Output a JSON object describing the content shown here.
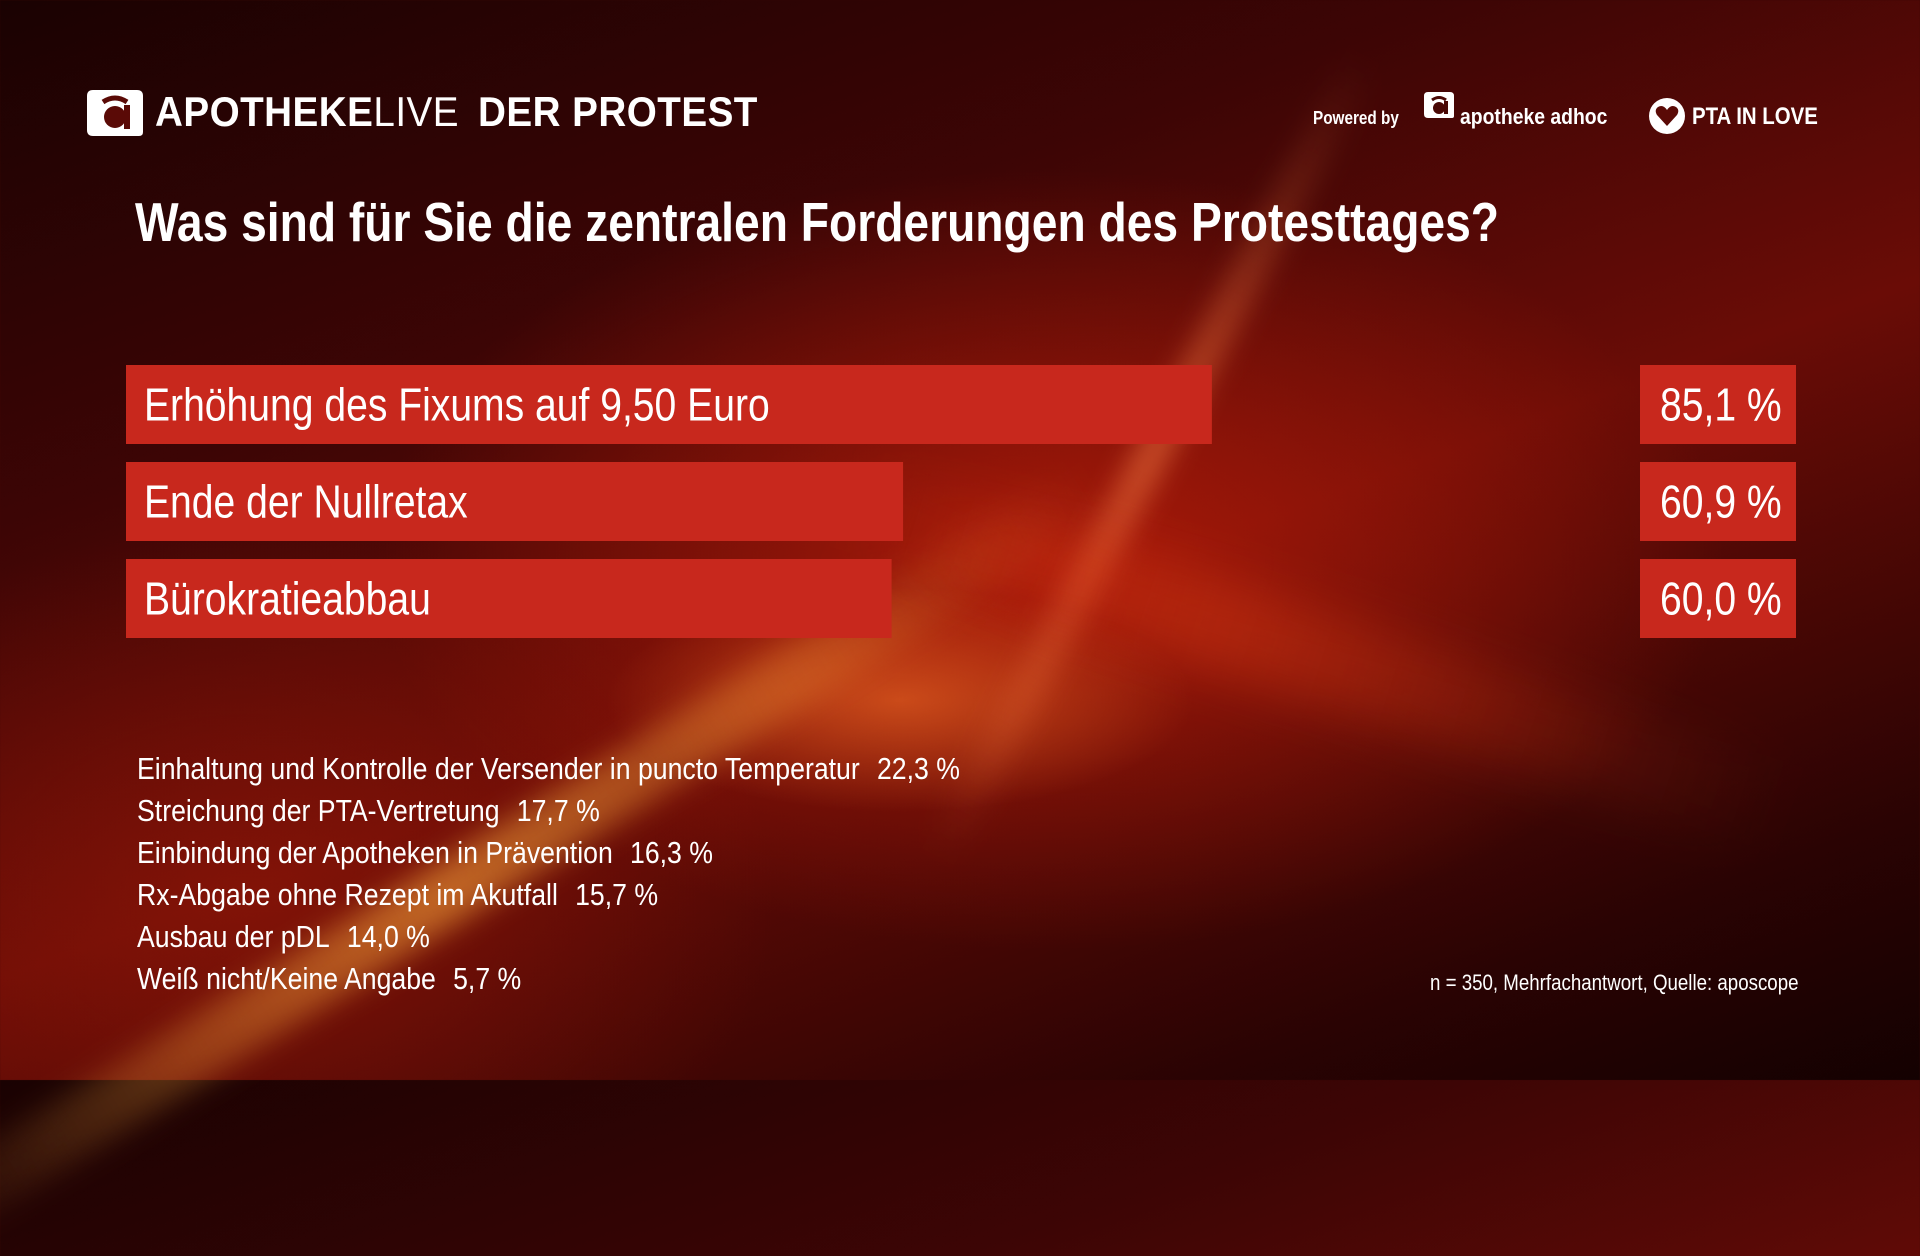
{
  "header": {
    "brand_bold": "APOTHEKE",
    "brand_light": "LIVE",
    "event_title": "DER PROTEST",
    "powered_by": "Powered by",
    "partner_1": "apotheke adhoc",
    "partner_2": "PTA IN LOVE",
    "logo_icon": "a-letter-logo-icon",
    "partner_1_icon": "a-letter-logo-icon",
    "partner_2_icon": "heart-icon"
  },
  "colors": {
    "bar": "#c8281d",
    "text": "#ffffff"
  },
  "chart_data": {
    "type": "bar",
    "orientation": "horizontal",
    "title": "Was sind für Sie die zentralen Forderungen des Protesttages?",
    "categories": [
      "Erhöhung des Fixums auf 9,50 Euro",
      "Ende der Nullretax",
      "Bürokratieabbau"
    ],
    "values": [
      85.1,
      60.9,
      60.0
    ],
    "value_labels": [
      "85,1 %",
      "60,9 %",
      "60,0 %"
    ],
    "unit": "%",
    "xlim": [
      0,
      100
    ],
    "grid": false,
    "legend": "none",
    "other_answers": [
      {
        "label": "Einhaltung und Kontrolle der Versender in puncto Temperatur",
        "value": 22.3,
        "value_label": "22,3 %"
      },
      {
        "label": "Streichung der PTA-Vertretung",
        "value": 17.7,
        "value_label": "17,7 %"
      },
      {
        "label": "Einbindung der Apotheken in Prävention",
        "value": 16.3,
        "value_label": "16,3 %"
      },
      {
        "label": "Rx-Abgabe ohne Rezept im Akutfall",
        "value": 15.7,
        "value_label": "15,7 %"
      },
      {
        "label": "Ausbau der pDL",
        "value": 14.0,
        "value_label": "14,0 %"
      },
      {
        "label": "Weiß nicht/Keine Angabe",
        "value": 5.7,
        "value_label": "5,7 %"
      }
    ],
    "note": "n = 350, Mehrfachantwort, Quelle: aposcope"
  }
}
